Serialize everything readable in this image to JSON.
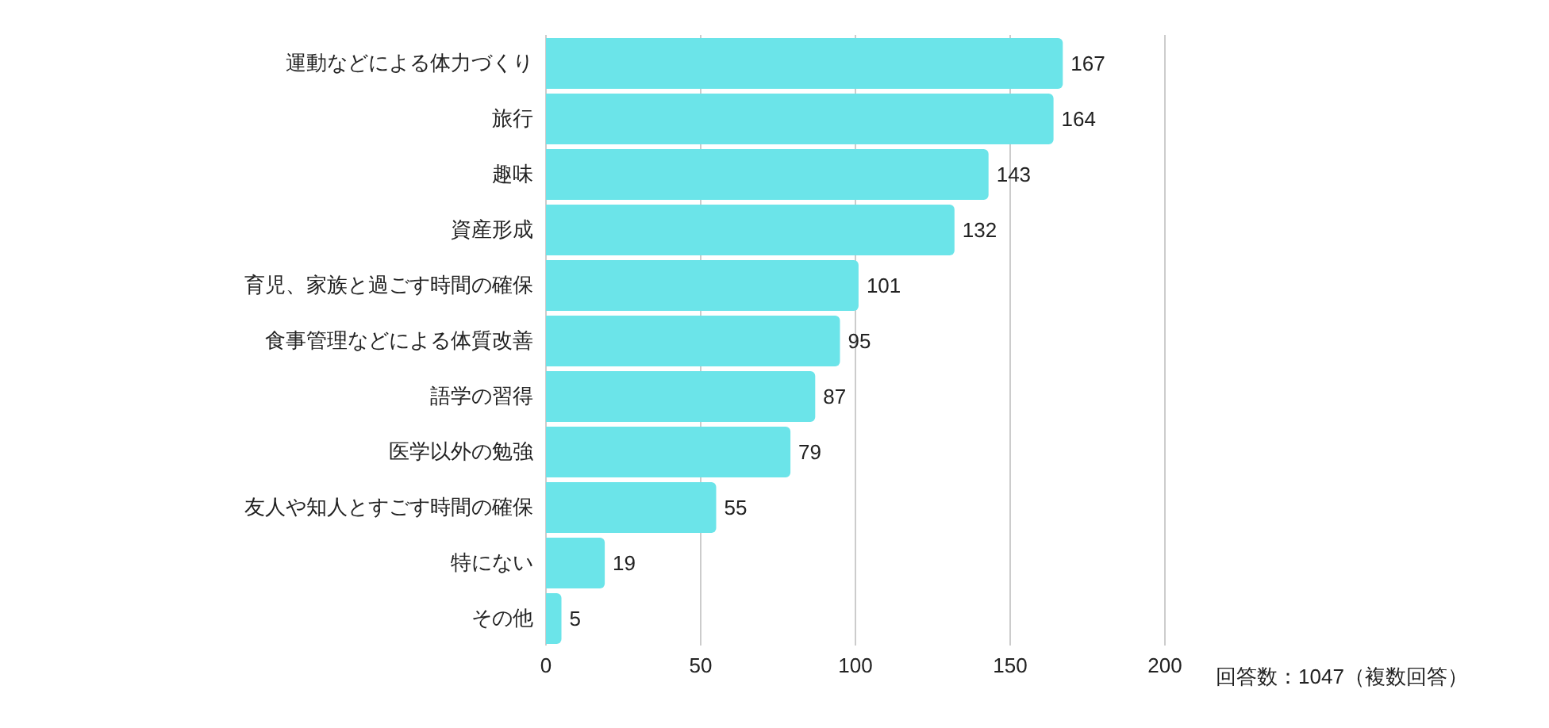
{
  "chart_data": {
    "type": "bar",
    "orientation": "horizontal",
    "categories": [
      "運動などによる体力づくり",
      "旅行",
      "趣味",
      "資産形成",
      "育児、家族と過ごす時間の確保",
      "食事管理などによる体質改善",
      "語学の習得",
      "医学以外の勉強",
      "友人や知人とすごす時間の確保",
      "特にない",
      "その他"
    ],
    "values": [
      167,
      164,
      143,
      132,
      101,
      95,
      87,
      79,
      55,
      19,
      5
    ],
    "color": "#6be4e9",
    "xlim": [
      0,
      200
    ],
    "xticks": [
      0,
      50,
      100,
      150,
      200
    ],
    "grid": "x",
    "data_labels": true,
    "annotations": [
      "回答数：1047（複数回答）"
    ]
  }
}
